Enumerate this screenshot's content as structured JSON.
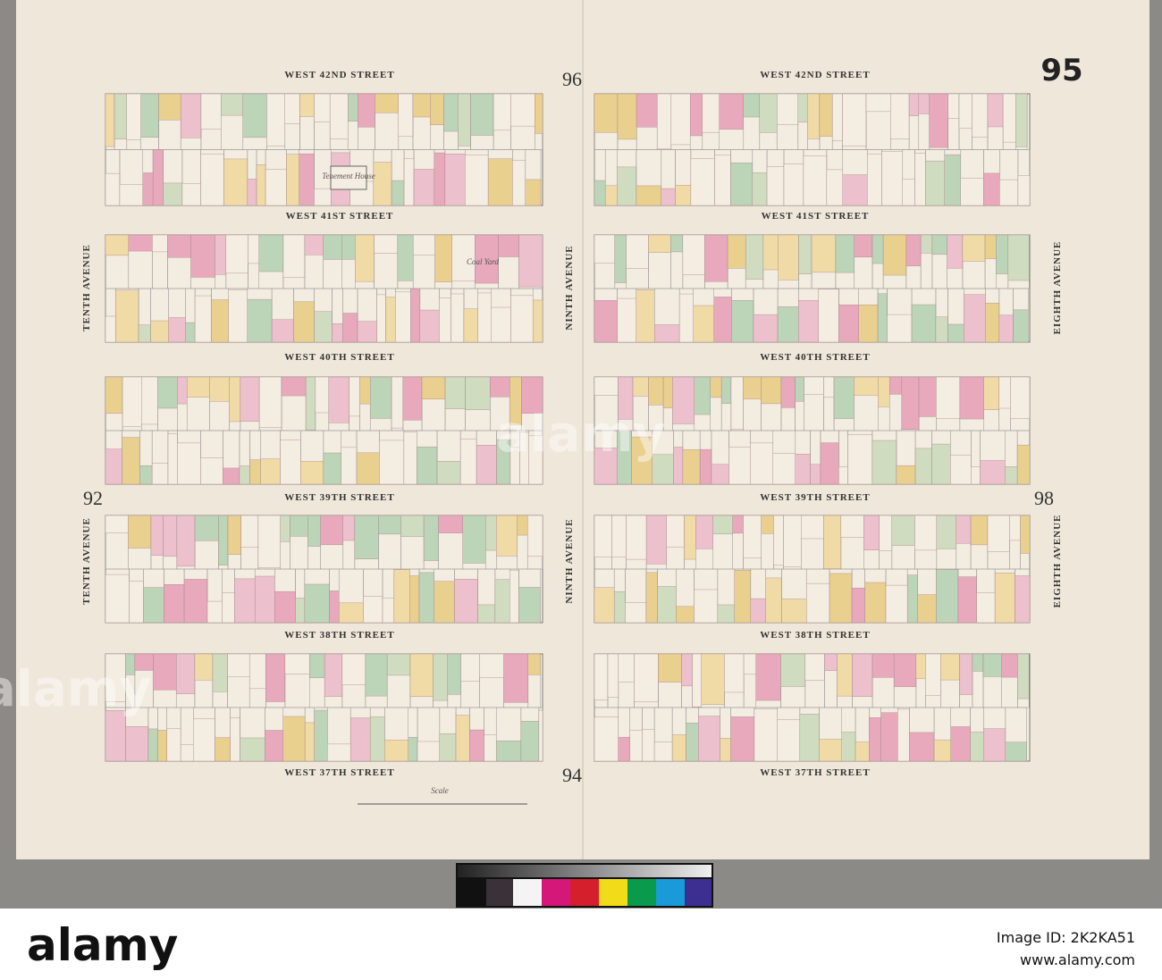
{
  "page_number": "95",
  "adjacent_pages": [
    "96",
    "92",
    "98",
    "94"
  ],
  "streets": [
    "WEST 42ND STREET",
    "WEST 41ST STREET",
    "WEST 40TH STREET",
    "WEST 39TH STREET",
    "WEST 38TH STREET",
    "WEST 37TH STREET"
  ],
  "avenues": [
    "TENTH AVENUE",
    "NINTH AVENUE",
    "EIGHTH AVENUE"
  ],
  "labels": [
    "Tenement House",
    "Coal Yard",
    "Scale"
  ],
  "watermark": {
    "brand": "alamy",
    "image_id": "Image ID: 2K2KA51",
    "url": "www.alamy.com"
  }
}
